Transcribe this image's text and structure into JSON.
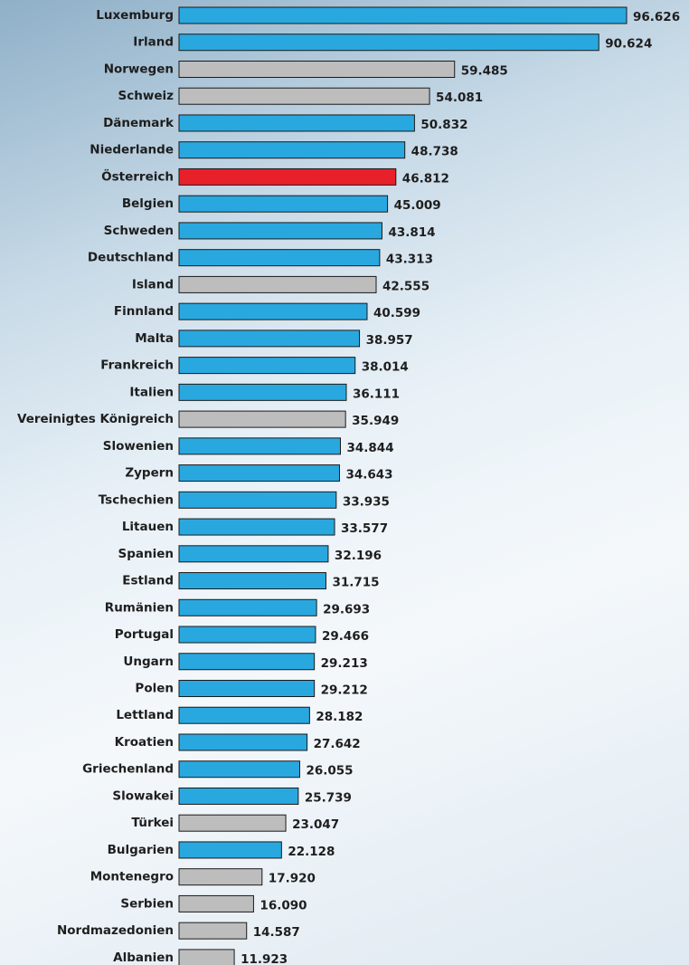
{
  "chart_data": {
    "type": "bar",
    "orientation": "horizontal",
    "categories": [
      "Luxemburg",
      "Irland",
      "Norwegen",
      "Schweiz",
      "Dänemark",
      "Niederlande",
      "Österreich",
      "Belgien",
      "Schweden",
      "Deutschland",
      "Island",
      "Finnland",
      "Malta",
      "Frankreich",
      "Italien",
      "Vereinigtes Königreich",
      "Slowenien",
      "Zypern",
      "Tschechien",
      "Litauen",
      "Spanien",
      "Estland",
      "Rumänien",
      "Portugal",
      "Ungarn",
      "Polen",
      "Lettland",
      "Kroatien",
      "Griechenland",
      "Slowakei",
      "Türkei",
      "Bulgarien",
      "Montenegro",
      "Serbien",
      "Nordmazedonien",
      "Albanien"
    ],
    "values": [
      96626,
      90624,
      59485,
      54081,
      50832,
      48738,
      46812,
      45009,
      43814,
      43313,
      42555,
      40599,
      38957,
      38014,
      36111,
      35949,
      34844,
      34643,
      33935,
      33577,
      32196,
      31715,
      29693,
      29466,
      29213,
      29212,
      28182,
      27642,
      26055,
      25739,
      23047,
      22128,
      17920,
      16090,
      14587,
      11923
    ],
    "value_labels": [
      "96.626",
      "90.624",
      "59.485",
      "54.081",
      "50.832",
      "48.738",
      "46.812",
      "45.009",
      "43.814",
      "43.313",
      "42.555",
      "40.599",
      "38.957",
      "38.014",
      "36.111",
      "35.949",
      "34.844",
      "34.643",
      "33.935",
      "33.577",
      "32.196",
      "31.715",
      "29.693",
      "29.466",
      "29.213",
      "29.212",
      "28.182",
      "27.642",
      "26.055",
      "25.739",
      "23.047",
      "22.128",
      "17.920",
      "16.090",
      "14.587",
      "11.923"
    ],
    "colors": [
      "#29a8e0",
      "#29a8e0",
      "#bdbdbd",
      "#bdbdbd",
      "#29a8e0",
      "#29a8e0",
      "#e8202a",
      "#29a8e0",
      "#29a8e0",
      "#29a8e0",
      "#bdbdbd",
      "#29a8e0",
      "#29a8e0",
      "#29a8e0",
      "#29a8e0",
      "#bdbdbd",
      "#29a8e0",
      "#29a8e0",
      "#29a8e0",
      "#29a8e0",
      "#29a8e0",
      "#29a8e0",
      "#29a8e0",
      "#29a8e0",
      "#29a8e0",
      "#29a8e0",
      "#29a8e0",
      "#29a8e0",
      "#29a8e0",
      "#29a8e0",
      "#bdbdbd",
      "#29a8e0",
      "#bdbdbd",
      "#bdbdbd",
      "#bdbdbd",
      "#bdbdbd"
    ]
  }
}
